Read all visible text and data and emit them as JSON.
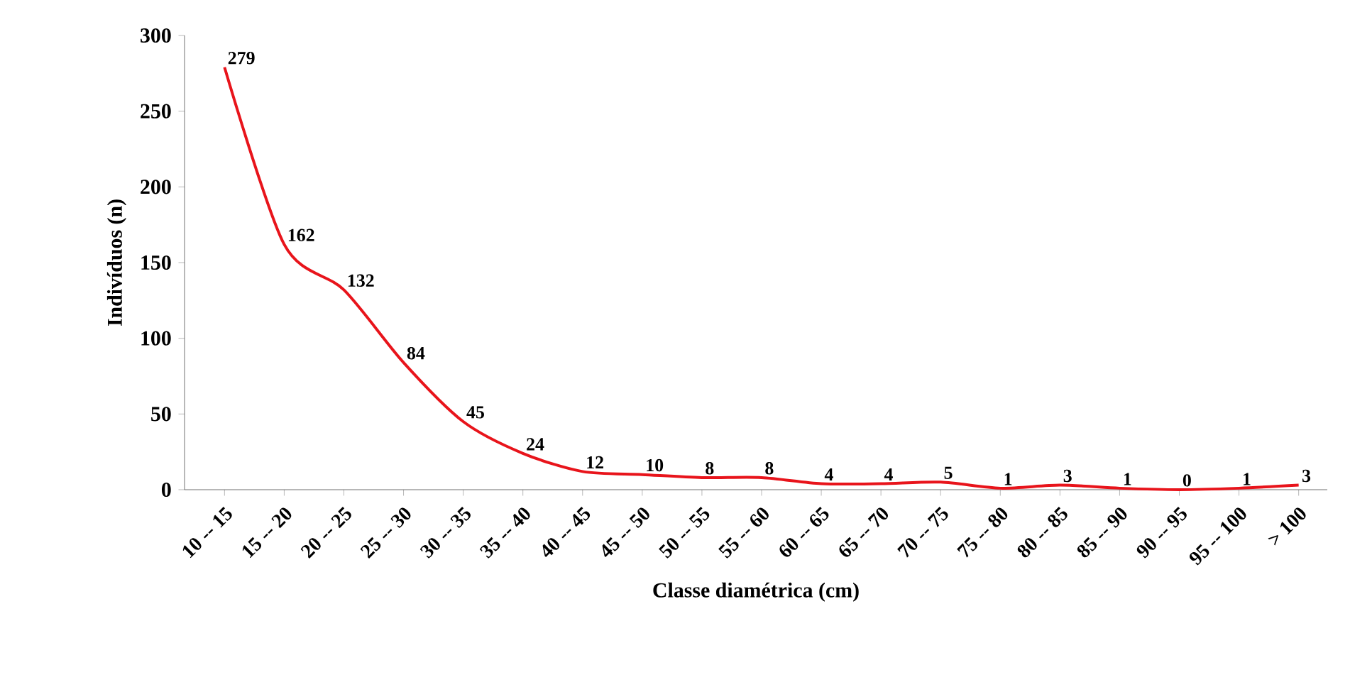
{
  "chart_data": {
    "type": "line",
    "xlabel": "Classe diamétrica  (cm)",
    "ylabel": "Indivíduos  (n)",
    "categories": [
      "10 -- 15",
      "15 -- 20",
      "20 -- 25",
      "25 -- 30",
      "30 -- 35",
      "35 -- 40",
      "40 -- 45",
      "45 -- 50",
      "50 -- 55",
      "55 -- 60",
      "60 -- 65",
      "65 -- 70",
      "70 -- 75",
      "75 -- 80",
      "80 -- 85",
      "85 -- 90",
      "90 -- 95",
      "95 -- 100",
      "> 100"
    ],
    "values": [
      279,
      162,
      132,
      84,
      45,
      24,
      12,
      10,
      8,
      8,
      4,
      4,
      5,
      1,
      3,
      1,
      0,
      1,
      3
    ],
    "color": "#e8141b",
    "ylim": [
      0,
      300
    ],
    "yticks": [
      0,
      50,
      100,
      150,
      200,
      250,
      300
    ],
    "data_labels": true
  }
}
